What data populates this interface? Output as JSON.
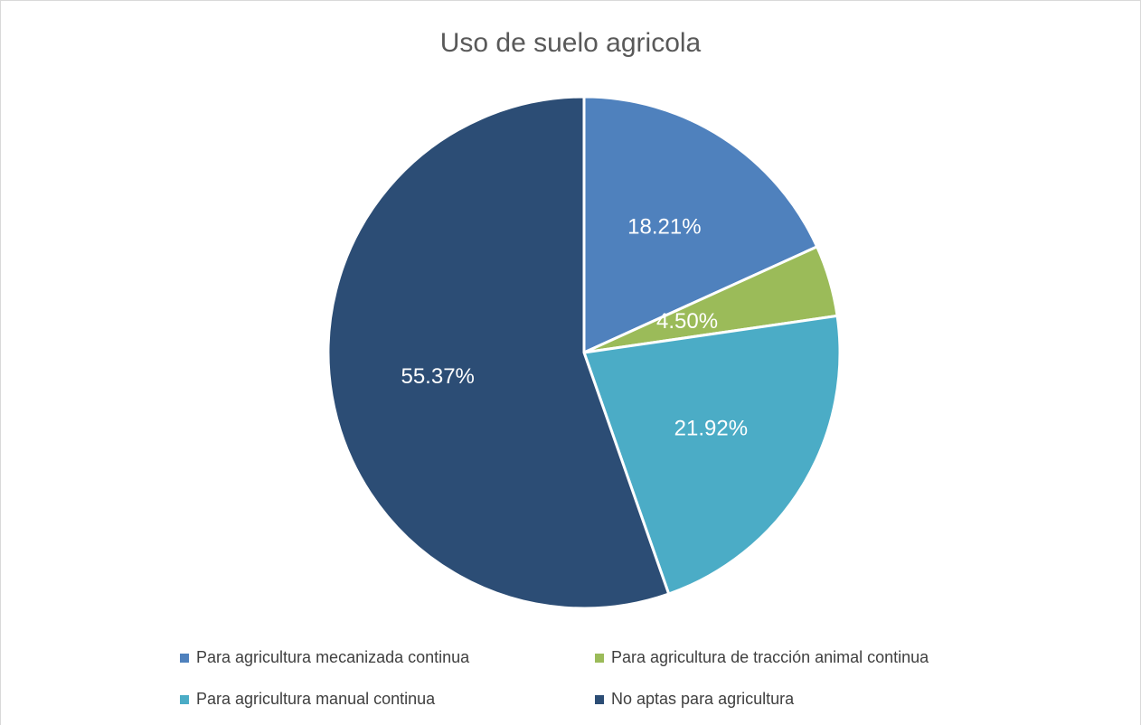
{
  "chart_data": {
    "type": "pie",
    "title": "Uso de suelo agricola",
    "categories": [
      "Para agricultura mecanizada continua",
      "Para agricultura de tracción animal continua",
      "Para agricultura manual continua",
      "No aptas para agricultura"
    ],
    "values": [
      18.21,
      4.5,
      21.92,
      55.37
    ],
    "data_labels": [
      "18.21%",
      "4.50%",
      "21.92%",
      "55.37%"
    ],
    "colors": [
      "#4f81bd",
      "#9bbb59",
      "#4bacc6",
      "#2c4d75"
    ],
    "legend_position": "bottom"
  }
}
